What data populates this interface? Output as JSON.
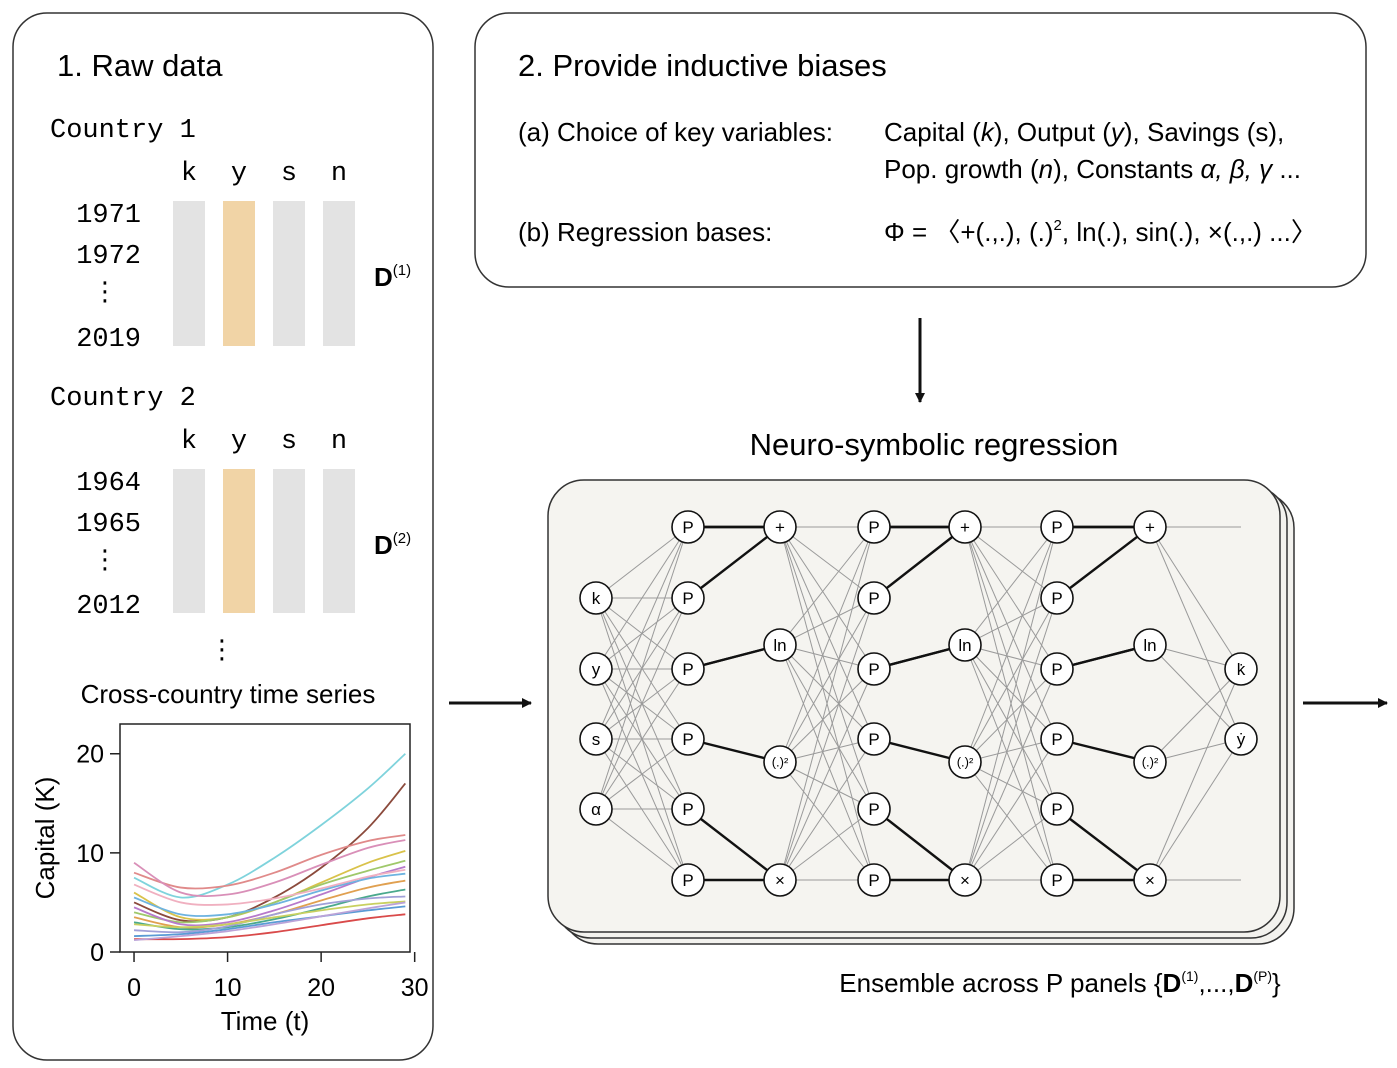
{
  "panel1": {
    "title": "1. Raw data",
    "countries": [
      {
        "name": "Country 1",
        "vars": [
          "k",
          "y",
          "s",
          "n"
        ],
        "years": [
          "1971",
          "1972",
          "2019"
        ],
        "matrix_label": "D",
        "matrix_sup": "(1)"
      },
      {
        "name": "Country 2",
        "vars": [
          "k",
          "y",
          "s",
          "n"
        ],
        "years": [
          "1964",
          "1965",
          "2012"
        ],
        "matrix_label": "D",
        "matrix_sup": "(2)"
      }
    ],
    "vdots": "⋮",
    "series_title": "Cross-country time series"
  },
  "panel2": {
    "title": "2. Provide inductive biases",
    "items": [
      {
        "label": "(a) Choice of key variables:",
        "lines": [
          [
            {
              "t": "Capital ("
            },
            {
              "t": "k",
              "i": true
            },
            {
              "t": "), Output ("
            },
            {
              "t": "y",
              "i": true
            },
            {
              "t": "), Savings (s),"
            }
          ],
          [
            {
              "t": "Pop. growth ("
            },
            {
              "t": "n",
              "i": true
            },
            {
              "t": "), Constants "
            },
            {
              "t": "α, β, γ",
              "i": true
            },
            {
              "t": " ..."
            }
          ]
        ]
      },
      {
        "label": "(b) Regression bases:",
        "lines": [
          [
            {
              "t": "Φ = 〈+(.,.), (.)"
            },
            {
              "t": "2",
              "sup": true
            },
            {
              "t": ", ln(.), sin(.), ×(.,.) ...〉"
            }
          ]
        ]
      }
    ]
  },
  "network": {
    "title": "Neuro-symbolic regression",
    "inputs": [
      "k",
      "y",
      "s",
      "α"
    ],
    "poly_label": "P",
    "ops": [
      "+",
      "ln",
      "(.)²",
      "×"
    ],
    "outputs": [
      "k̇",
      "ẏ"
    ],
    "ensemble": {
      "prefix": "Ensemble across P panels {",
      "bold": "D",
      "sup1": "(1)",
      "mid": ",...,",
      "sup2": "(P)",
      "suffix": "}"
    }
  },
  "colors": {
    "bar_gray": "#e3e3e3",
    "bar_highlight": "#f1d4a6",
    "panel_stroke": "#333333",
    "edge_gray": "#9a9a9a",
    "edge_dark": "#111111"
  },
  "chart_data": {
    "type": "line",
    "title": "",
    "xlabel": "Time (t)",
    "ylabel": "Capital (K)",
    "xlim": [
      -1.5,
      29.5
    ],
    "ylim": [
      0,
      23
    ],
    "xticks": [
      0,
      10,
      20,
      30
    ],
    "yticks": [
      0,
      10,
      20
    ],
    "x": [
      0,
      5,
      10,
      15,
      20,
      25,
      29
    ],
    "series": [
      {
        "color": "#7fd3dc",
        "values": [
          7.5,
          5.5,
          6.8,
          9.5,
          12.8,
          16.5,
          20.0
        ]
      },
      {
        "color": "#8b4a3c",
        "values": [
          5.0,
          3.2,
          3.5,
          5.5,
          8.5,
          12.5,
          17.0
        ]
      },
      {
        "color": "#e08a8a",
        "values": [
          8.0,
          6.5,
          6.7,
          8.0,
          9.8,
          11.2,
          11.8
        ]
      },
      {
        "color": "#d98fb8",
        "values": [
          9.0,
          6.0,
          5.8,
          7.0,
          8.8,
          10.5,
          11.3
        ]
      },
      {
        "color": "#d9c24a",
        "values": [
          6.0,
          3.5,
          3.5,
          5.0,
          7.0,
          9.0,
          10.2
        ]
      },
      {
        "color": "#9fc86a",
        "values": [
          4.0,
          3.0,
          3.5,
          5.0,
          6.8,
          8.2,
          9.2
        ]
      },
      {
        "color": "#b77acb",
        "values": [
          4.5,
          2.8,
          3.0,
          4.2,
          5.8,
          7.5,
          8.6
        ]
      },
      {
        "color": "#6db3e0",
        "values": [
          5.5,
          3.8,
          3.8,
          4.8,
          6.2,
          7.4,
          7.9
        ]
      },
      {
        "color": "#e0a050",
        "values": [
          3.5,
          2.5,
          2.8,
          3.8,
          5.2,
          6.5,
          7.2
        ]
      },
      {
        "color": "#4aa98d",
        "values": [
          3.0,
          2.3,
          2.5,
          3.3,
          4.4,
          5.6,
          6.3
        ]
      },
      {
        "color": "#a0a0d8",
        "values": [
          2.2,
          2.0,
          2.6,
          3.8,
          4.8,
          5.4,
          5.6
        ]
      },
      {
        "color": "#c8d060",
        "values": [
          2.8,
          2.5,
          2.8,
          3.5,
          4.2,
          4.8,
          5.1
        ]
      },
      {
        "color": "#5a9bd5",
        "values": [
          1.6,
          1.8,
          2.3,
          3.0,
          3.6,
          4.2,
          4.6
        ]
      },
      {
        "color": "#d94a4a",
        "values": [
          1.3,
          1.3,
          1.5,
          2.0,
          2.7,
          3.4,
          3.8
        ]
      },
      {
        "color": "#bba3d8",
        "values": [
          1.2,
          1.6,
          2.1,
          2.8,
          3.6,
          4.4,
          5.0
        ]
      },
      {
        "color": "#f0b0c0",
        "values": [
          6.8,
          5.0,
          4.8,
          5.4,
          6.4,
          7.6,
          8.3
        ]
      }
    ]
  }
}
